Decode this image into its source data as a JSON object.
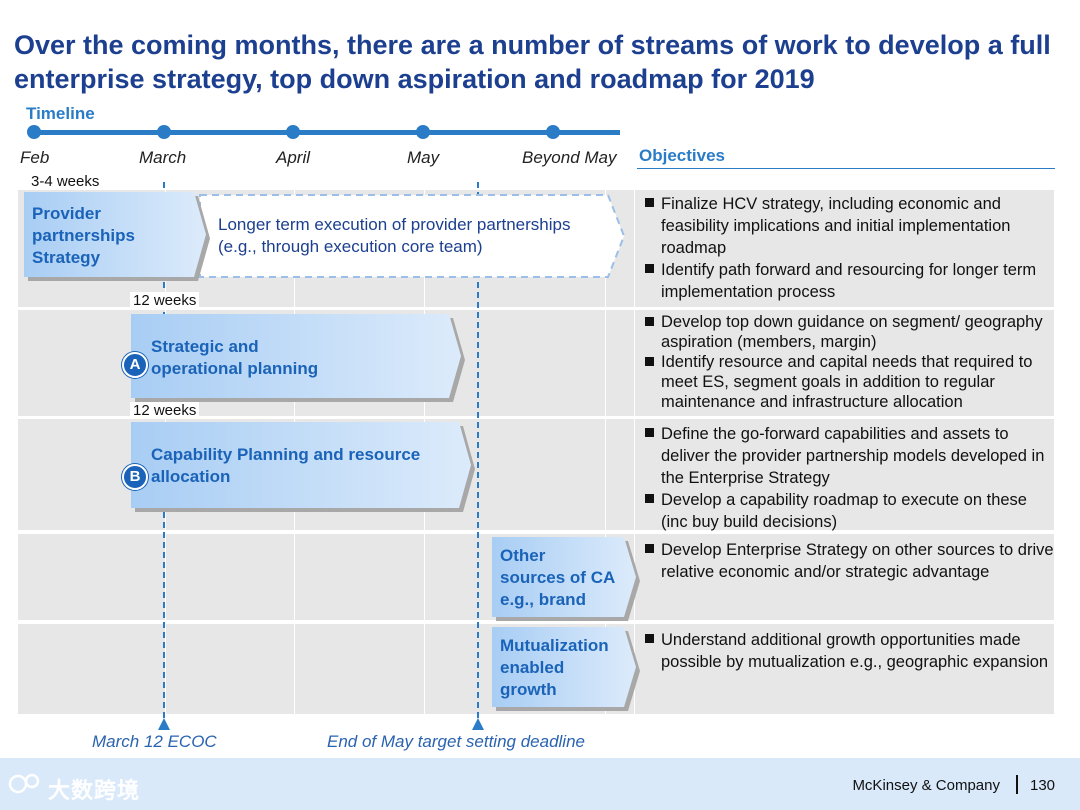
{
  "title": "Over the coming months, there are a number of streams of work to develop a full enterprise strategy, top down aspiration and roadmap for 2019",
  "timeline": {
    "label": "Timeline",
    "months": [
      "Feb",
      "March",
      "April",
      "May",
      "Beyond May"
    ]
  },
  "objectives_header": "Objectives",
  "streams": [
    {
      "duration": "3-4 weeks",
      "label": "Provider partnerships Strategy",
      "label_lines": [
        "Provider",
        "partnerships",
        "Strategy"
      ],
      "extension_lines": [
        "Longer term execution of provider partnerships",
        "(e.g., through execution core team)"
      ],
      "objectives": [
        "Finalize HCV strategy, including economic and feasibility implications and initial implementation roadmap",
        "Identify  path forward and resourcing for longer term implementation process"
      ]
    },
    {
      "duration": "12 weeks",
      "marker": "A",
      "label_lines": [
        "Strategic and",
        "operational planning"
      ],
      "objectives": [
        "Develop top down guidance on segment/ geography aspiration (members, margin)",
        "Identify resource and capital needs that required to meet ES, segment goals in addition to regular maintenance and infrastructure allocation"
      ]
    },
    {
      "duration": "12 weeks",
      "marker": "B",
      "label_lines": [
        "Capability Planning and resource",
        "allocation"
      ],
      "objectives": [
        "Define the go-forward capabilities and assets to deliver the provider partnership models developed in the Enterprise Strategy",
        "Develop a capability roadmap to execute on these (inc buy build decisions)"
      ]
    },
    {
      "label_lines": [
        "Other",
        "sources of CA",
        "e.g., brand"
      ],
      "objectives": [
        "Develop Enterprise Strategy on other sources to drive relative economic and/or strategic advantage"
      ]
    },
    {
      "label_lines": [
        "Mutualization",
        "enabled",
        "growth"
      ],
      "objectives": [
        "Understand additional growth opportunities made possible by mutualization e.g., geographic expansion"
      ]
    }
  ],
  "milestones": [
    "March 12 ECOC",
    "End of May target setting deadline"
  ],
  "footer": {
    "watermark": "大数跨境",
    "company": "McKinsey & Company",
    "page": "130"
  }
}
